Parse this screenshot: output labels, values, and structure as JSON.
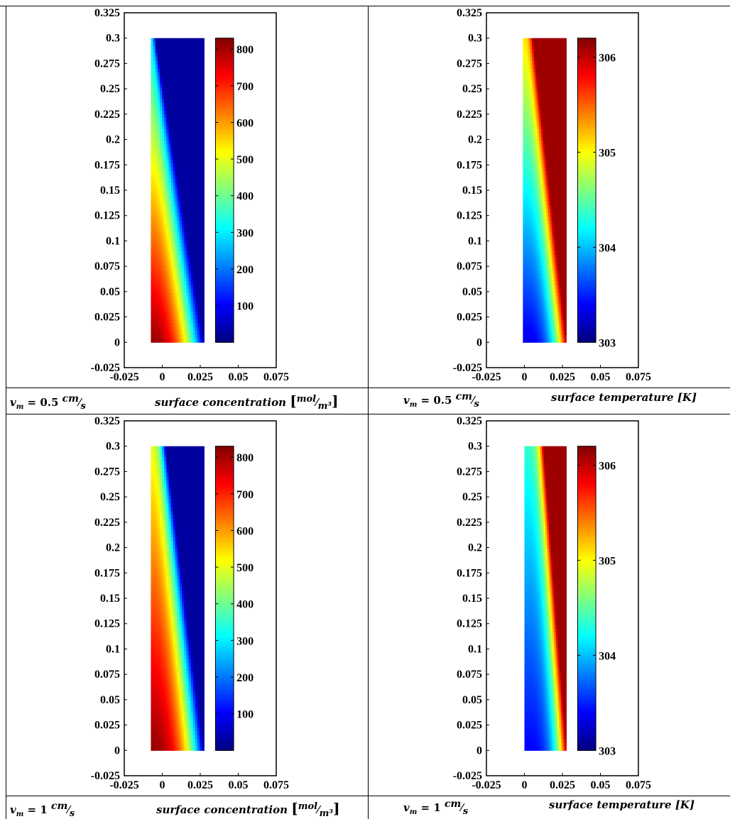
{
  "chart_data": [
    {
      "type": "heatmap",
      "panel": "top-left",
      "caption_velocity": "v_m = 0.5 cm/s",
      "caption_quantity": "surface concentration [mol/m³]",
      "xticks": [
        "-0.025",
        "0",
        "0.025",
        "0.05",
        "0.075"
      ],
      "yticks": [
        "-0.025",
        "0",
        "0.025",
        "0.05",
        "0.075",
        "0.1",
        "0.125",
        "0.15",
        "0.175",
        "0.2",
        "0.225",
        "0.25",
        "0.275",
        "0.3",
        "0.325"
      ],
      "xlim": [
        -0.025,
        0.075
      ],
      "ylim": [
        -0.025,
        0.325
      ],
      "domain_x": [
        -0.0075,
        0.0275
      ],
      "domain_y": [
        0,
        0.3
      ],
      "colorbar": {
        "min": 0,
        "max": 830,
        "ticks": [
          100,
          200,
          300,
          400,
          500,
          600,
          700,
          800
        ]
      },
      "field": "concentration: high at bottom-left (~830), low along right edge (~0), inlet at top near left ~300"
    },
    {
      "type": "heatmap",
      "panel": "top-right",
      "caption_velocity": "v_m = 0.5 cm/s",
      "caption_quantity": "surface temperature [K]",
      "xticks": [
        "-0.025",
        "0",
        "0.025",
        "0.05",
        "0.075"
      ],
      "yticks": [
        "-0.025",
        "0",
        "0.025",
        "0.05",
        "0.075",
        "0.1",
        "0.125",
        "0.15",
        "0.175",
        "0.2",
        "0.225",
        "0.25",
        "0.275",
        "0.3",
        "0.325"
      ],
      "xlim": [
        -0.025,
        0.075
      ],
      "ylim": [
        -0.025,
        0.325
      ],
      "domain_x": [
        -0.001,
        0.0275
      ],
      "domain_y": [
        0,
        0.3
      ],
      "colorbar": {
        "min": 303,
        "max": 306.2,
        "ticks": [
          303,
          304,
          305,
          306
        ]
      },
      "field": "temperature: hot (~306) along right edge, cool (~303) bottom-left"
    },
    {
      "type": "heatmap",
      "panel": "bottom-left",
      "caption_velocity": "v_m = 1 cm/s",
      "caption_quantity": "surface concentration [mol/m³]",
      "xticks": [
        "-0.025",
        "0",
        "0.025",
        "0.05",
        "0.075"
      ],
      "yticks": [
        "-0.025",
        "0",
        "0.025",
        "0.05",
        "0.075",
        "0.1",
        "0.125",
        "0.15",
        "0.175",
        "0.2",
        "0.225",
        "0.25",
        "0.275",
        "0.3",
        "0.325"
      ],
      "xlim": [
        -0.025,
        0.075
      ],
      "ylim": [
        -0.025,
        0.325
      ],
      "domain_x": [
        -0.0075,
        0.0275
      ],
      "domain_y": [
        0,
        0.3
      ],
      "colorbar": {
        "min": 0,
        "max": 830,
        "ticks": [
          100,
          200,
          300,
          400,
          500,
          600,
          700,
          800
        ]
      },
      "field": "concentration: high (~830) on left, low (~0) along right edge"
    },
    {
      "type": "heatmap",
      "panel": "bottom-right",
      "caption_velocity": "v_m = 1 cm/s",
      "caption_quantity": "surface temperature [K]",
      "xticks": [
        "-0.025",
        "0",
        "0.025",
        "0.05",
        "0.075"
      ],
      "yticks": [
        "-0.025",
        "0",
        "0.025",
        "0.05",
        "0.075",
        "0.1",
        "0.125",
        "0.15",
        "0.175",
        "0.2",
        "0.225",
        "0.25",
        "0.275",
        "0.3",
        "0.325"
      ],
      "xlim": [
        -0.025,
        0.075
      ],
      "ylim": [
        -0.025,
        0.325
      ],
      "domain_x": [
        0,
        0.0275
      ],
      "domain_y": [
        0,
        0.3
      ],
      "colorbar": {
        "min": 303,
        "max": 306.2,
        "ticks": [
          303,
          304,
          305,
          306
        ]
      },
      "field": "temperature: hot (~306) along right edge, ~303.5 elsewhere"
    }
  ],
  "captions": {
    "tl_v": "v",
    "tl_sub": "m",
    "tl_eq": " = 0.5 ",
    "tl_unit_num": "cm",
    "tl_unit_den": "s",
    "tl_q": "surface concentration ",
    "tl_qu_num": "mol",
    "tl_qu_den": "m³",
    "tr_v": "v",
    "tr_sub": "m",
    "tr_eq": " = 0.5 ",
    "tr_unit_num": "cm",
    "tr_unit_den": "s",
    "tr_q": "surface temperature [K]",
    "bl_v": "v",
    "bl_sub": "m",
    "bl_eq": " = 1 ",
    "bl_unit_num": "cm",
    "bl_unit_den": "s",
    "bl_q": "surface concentration ",
    "bl_qu_num": "mol",
    "bl_qu_den": "m³",
    "br_v": "v",
    "br_sub": "m",
    "br_eq": " = 1 ",
    "br_unit_num": "cm",
    "br_unit_den": "s",
    "br_q": "surface temperature [K]"
  }
}
